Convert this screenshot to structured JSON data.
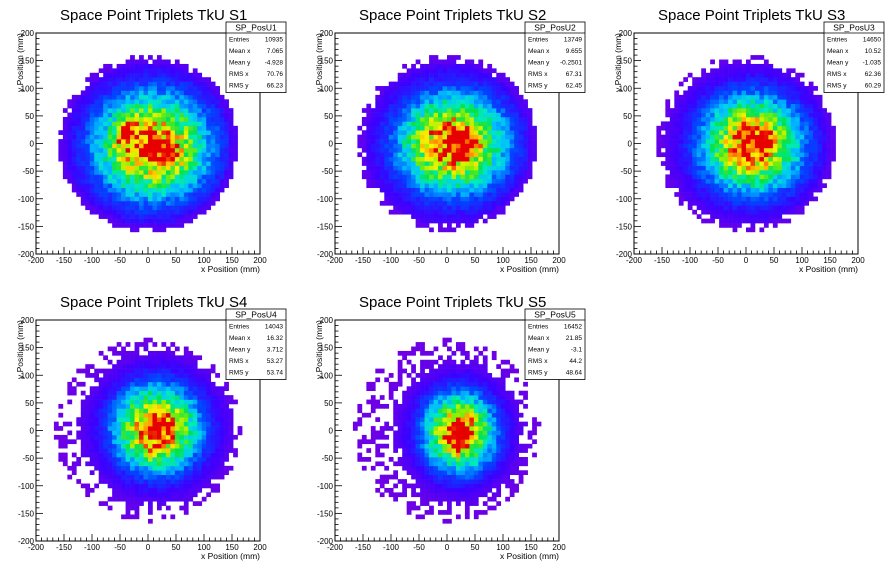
{
  "chart_data": [
    {
      "type": "heatmap",
      "title": "Space Point Triplets TkU S1",
      "xlabel": "x Position (mm)",
      "ylabel": "y Position (mm)",
      "xlim": [
        -200,
        200
      ],
      "ylim": [
        -200,
        200
      ],
      "xticks": [
        "-200",
        "-150",
        "-100",
        "-50",
        "0",
        "50",
        "100",
        "150",
        "200"
      ],
      "yticks": [
        "-200",
        "-150",
        "-100",
        "-50",
        "0",
        "50",
        "100",
        "150",
        "200"
      ],
      "stats": {
        "name": "SP_PosU1",
        "rows": [
          {
            "label": "Entries",
            "value": "10935"
          },
          {
            "label": "Mean x",
            "value": "7.065"
          },
          {
            "label": "Mean y",
            "value": "-4.928"
          },
          {
            "label": "RMS x",
            "value": "70.76"
          },
          {
            "label": "RMS y",
            "value": "66.23"
          }
        ]
      },
      "entries": 10935,
      "mean_x": 7.065,
      "mean_y": -4.928,
      "rms_x": 70.76,
      "rms_y": 66.23,
      "extent_radius": 160,
      "hot_spots": [
        [
          40,
          -25
        ],
        [
          -30,
          30
        ],
        [
          -45,
          5
        ]
      ]
    },
    {
      "type": "heatmap",
      "title": "Space Point Triplets TkU S2",
      "xlabel": "x Position (mm)",
      "ylabel": "y Position (mm)",
      "xlim": [
        -200,
        200
      ],
      "ylim": [
        -200,
        200
      ],
      "xticks": [
        "-200",
        "-150",
        "-100",
        "-50",
        "0",
        "50",
        "100",
        "150",
        "200"
      ],
      "yticks": [
        "-200",
        "-150",
        "-100",
        "-50",
        "0",
        "50",
        "100",
        "150",
        "200"
      ],
      "stats": {
        "name": "SP_PosU2",
        "rows": [
          {
            "label": "Entries",
            "value": "13749"
          },
          {
            "label": "Mean x",
            "value": "9.655"
          },
          {
            "label": "Mean y",
            "value": "-0.2501"
          },
          {
            "label": "RMS x",
            "value": "67.31"
          },
          {
            "label": "RMS y",
            "value": "62.45"
          }
        ]
      },
      "entries": 13749,
      "mean_x": 9.655,
      "mean_y": -0.2501,
      "rms_x": 67.31,
      "rms_y": 62.45,
      "extent_radius": 160,
      "hot_spots": [
        [
          15,
          10
        ],
        [
          35,
          -5
        ]
      ]
    },
    {
      "type": "heatmap",
      "title": "Space Point Triplets TkU S3",
      "xlabel": "x Position (mm)",
      "ylabel": "y Position (mm)",
      "xlim": [
        -200,
        200
      ],
      "ylim": [
        -200,
        200
      ],
      "xticks": [
        "-200",
        "-150",
        "-100",
        "-50",
        "0",
        "50",
        "100",
        "150",
        "200"
      ],
      "yticks": [
        "-200",
        "-150",
        "-100",
        "-50",
        "0",
        "50",
        "100",
        "150",
        "200"
      ],
      "stats": {
        "name": "SP_PosU3",
        "rows": [
          {
            "label": "Entries",
            "value": "14650"
          },
          {
            "label": "Mean x",
            "value": "10.52"
          },
          {
            "label": "Mean y",
            "value": "-1.035"
          },
          {
            "label": "RMS x",
            "value": "62.36"
          },
          {
            "label": "RMS y",
            "value": "60.29"
          }
        ]
      },
      "entries": 14650,
      "mean_x": 10.52,
      "mean_y": -1.035,
      "rms_x": 62.36,
      "rms_y": 60.29,
      "extent_radius": 160,
      "hot_spots": [
        [
          25,
          0
        ],
        [
          35,
          10
        ]
      ]
    },
    {
      "type": "heatmap",
      "title": "Space Point Triplets TkU S4",
      "xlabel": "x Position (mm)",
      "ylabel": "y Position (mm)",
      "xlim": [
        -200,
        200
      ],
      "ylim": [
        -200,
        200
      ],
      "xticks": [
        "-200",
        "-150",
        "-100",
        "-50",
        "0",
        "50",
        "100",
        "150",
        "200"
      ],
      "yticks": [
        "-200",
        "-150",
        "-100",
        "-50",
        "0",
        "50",
        "100",
        "150",
        "200"
      ],
      "stats": {
        "name": "SP_PosU4",
        "rows": [
          {
            "label": "Entries",
            "value": "14043"
          },
          {
            "label": "Mean x",
            "value": "16.32"
          },
          {
            "label": "Mean y",
            "value": "3.712"
          },
          {
            "label": "RMS x",
            "value": "53.27"
          },
          {
            "label": "RMS y",
            "value": "53.74"
          }
        ]
      },
      "entries": 14043,
      "mean_x": 16.32,
      "mean_y": 3.712,
      "rms_x": 53.27,
      "rms_y": 53.74,
      "extent_radius": 165,
      "hot_spots": [
        [
          20,
          15
        ],
        [
          15,
          -30
        ]
      ]
    },
    {
      "type": "heatmap",
      "title": "Space Point Triplets TkU S5",
      "xlabel": "x Position (mm)",
      "ylabel": "y Position (mm)",
      "xlim": [
        -200,
        200
      ],
      "ylim": [
        -200,
        200
      ],
      "xticks": [
        "-200",
        "-150",
        "-100",
        "-50",
        "0",
        "50",
        "100",
        "150",
        "200"
      ],
      "yticks": [
        "-200",
        "-150",
        "-100",
        "-50",
        "0",
        "50",
        "100",
        "150",
        "200"
      ],
      "stats": {
        "name": "SP_PosU5",
        "rows": [
          {
            "label": "Entries",
            "value": "16452"
          },
          {
            "label": "Mean x",
            "value": "21.85"
          },
          {
            "label": "Mean y",
            "value": "-3.1"
          },
          {
            "label": "RMS x",
            "value": "44.2"
          },
          {
            "label": "RMS y",
            "value": "48.64"
          }
        ]
      },
      "entries": 16452,
      "mean_x": 21.85,
      "mean_y": -3.1,
      "rms_x": 44.2,
      "rms_y": 48.64,
      "extent_radius": 165,
      "hot_spots": [
        [
          25,
          -5
        ],
        [
          20,
          -20
        ]
      ]
    }
  ]
}
